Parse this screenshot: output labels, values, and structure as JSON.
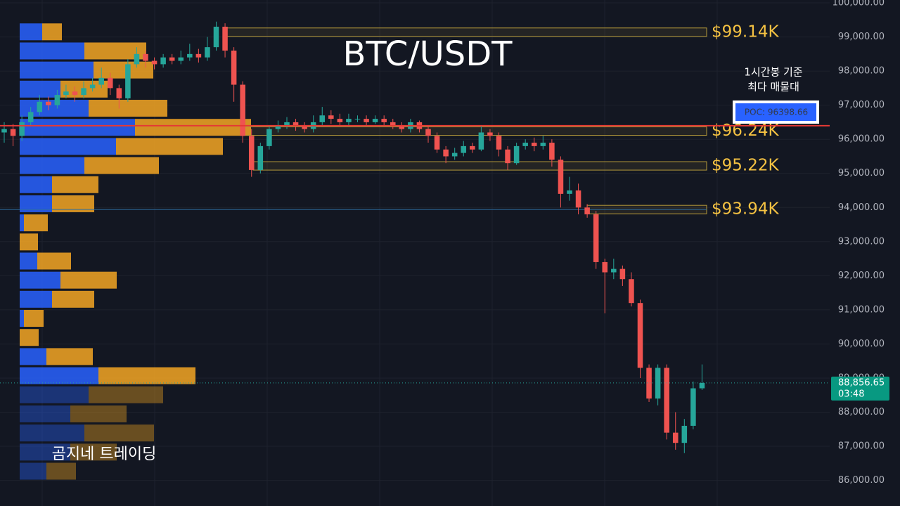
{
  "chart_data": {
    "type": "candlestick",
    "title": "BTC/USDT",
    "ylim": [
      85250,
      100083
    ],
    "yticks": [
      {
        "value": 86000,
        "label": "86,000.00"
      },
      {
        "value": 87000,
        "label": "87,000.00"
      },
      {
        "value": 88000,
        "label": "88,000.00"
      },
      {
        "value": 89000,
        "label": "89,000.00"
      },
      {
        "value": 90000,
        "label": "90,000.00"
      },
      {
        "value": 91000,
        "label": "91,000.00"
      },
      {
        "value": 92000,
        "label": "92,000.00"
      },
      {
        "value": 93000,
        "label": "93,000.00"
      },
      {
        "value": 94000,
        "label": "94,000.00"
      },
      {
        "value": 95000,
        "label": "95,000.00"
      },
      {
        "value": 96000,
        "label": "96,000.00"
      },
      {
        "value": 97000,
        "label": "97,000.00"
      },
      {
        "value": 98000,
        "label": "98,000.00"
      },
      {
        "value": 99000,
        "label": "99,000.00"
      },
      {
        "value": 100000,
        "label": "100,000.00"
      }
    ],
    "grid": true,
    "up_color": "#26a69a",
    "down_color": "#ef5350",
    "open": [
      96200,
      96300,
      96100,
      96500,
      96800,
      97100,
      97000,
      97300,
      97400,
      97300,
      97500,
      97600,
      97800,
      97500,
      97200,
      98200,
      98500,
      98300,
      98200,
      98400,
      98300,
      98400,
      98500,
      98400,
      98700,
      99300,
      98600,
      97600,
      96100,
      95100,
      95800,
      96300,
      96400,
      96500,
      96400,
      96300,
      96500,
      96700,
      96600,
      96500,
      96600,
      96600,
      96500,
      96600,
      96500,
      96400,
      96300,
      96500,
      96300,
      96100,
      95700,
      95500,
      95600,
      95800,
      95700,
      96200,
      96100,
      95700,
      95300,
      95800,
      95900,
      95800,
      95900,
      95400,
      94400,
      94500,
      94000,
      93800,
      92400,
      92100,
      92200,
      91900,
      91200,
      89300,
      88400,
      89300,
      87400,
      87100,
      87600,
      88700
    ],
    "high": [
      96500,
      96450,
      96700,
      96950,
      97300,
      97250,
      97450,
      97600,
      97550,
      97700,
      97800,
      98100,
      97950,
      97600,
      98350,
      98700,
      98600,
      98400,
      98500,
      98500,
      98600,
      98800,
      98650,
      99000,
      99450,
      99400,
      98700,
      97700,
      96300,
      95900,
      96400,
      96550,
      96650,
      96600,
      96500,
      96700,
      96950,
      96850,
      96750,
      96750,
      96700,
      96700,
      96700,
      96700,
      96600,
      96500,
      96600,
      96550,
      96400,
      96200,
      95800,
      95750,
      95950,
      95900,
      96400,
      96300,
      96200,
      95800,
      95900,
      96000,
      96050,
      96100,
      96000,
      95500,
      94900,
      94700,
      94100,
      93900,
      92500,
      92500,
      92300,
      92100,
      91300,
      89400,
      89400,
      89400,
      88000,
      87800,
      88900,
      89400
    ],
    "low": [
      95900,
      95800,
      95950,
      96400,
      96700,
      96850,
      96900,
      97200,
      97100,
      97200,
      97400,
      97500,
      97300,
      96900,
      97100,
      98100,
      98100,
      98050,
      98100,
      98200,
      98200,
      98300,
      98250,
      98300,
      98600,
      98400,
      97100,
      95900,
      94900,
      95000,
      95700,
      96200,
      96300,
      96250,
      96200,
      96200,
      96400,
      96450,
      96400,
      96400,
      96500,
      96400,
      96450,
      96400,
      96300,
      96200,
      96200,
      96200,
      95900,
      95600,
      95300,
      95400,
      95500,
      95600,
      95650,
      95950,
      95500,
      95100,
      95250,
      95700,
      95650,
      95700,
      95200,
      94000,
      94200,
      93800,
      93700,
      92200,
      90900,
      91900,
      91700,
      91100,
      89000,
      88300,
      88200,
      87200,
      86900,
      86800,
      87500,
      88650
    ],
    "close": [
      96300,
      96100,
      96500,
      96800,
      97100,
      97000,
      97300,
      97400,
      97300,
      97500,
      97600,
      97800,
      97500,
      97200,
      98200,
      98500,
      98300,
      98200,
      98400,
      98300,
      98400,
      98500,
      98400,
      98700,
      99300,
      98600,
      97600,
      96100,
      95100,
      95800,
      96300,
      96400,
      96500,
      96400,
      96300,
      96500,
      96700,
      96600,
      96500,
      96600,
      96600,
      96500,
      96600,
      96500,
      96400,
      96300,
      96500,
      96300,
      96100,
      95700,
      95500,
      95600,
      95800,
      95700,
      96200,
      96100,
      95700,
      95300,
      95800,
      95900,
      95800,
      95900,
      95400,
      94400,
      94500,
      94000,
      93800,
      92400,
      92100,
      92200,
      91900,
      91200,
      89300,
      88400,
      89300,
      87400,
      87100,
      87600,
      88700,
      88857
    ],
    "volume_profile": {
      "buy_color": "#2962ff",
      "sell_color": "#f5a623",
      "levels": [
        99150,
        98590,
        98030,
        97470,
        96910,
        96350,
        95790,
        95230,
        94670,
        94110,
        93550,
        92990,
        92430,
        91870,
        91310,
        90750,
        90190,
        89630,
        89070,
        88510,
        87950,
        87390,
        86830,
        86270
      ],
      "buy": [
        32,
        92,
        105,
        58,
        98,
        164,
        137,
        92,
        46,
        46,
        6,
        0,
        25,
        58,
        46,
        6,
        0,
        38,
        112,
        98,
        72,
        92,
        72,
        38
      ],
      "sell": [
        28,
        88,
        85,
        67,
        112,
        165,
        152,
        106,
        66,
        60,
        34,
        26,
        48,
        80,
        60,
        28,
        27,
        66,
        138,
        106,
        80,
        99,
        66,
        42
      ]
    },
    "levels": [
      {
        "value": 99140,
        "label": "$99.14K"
      },
      {
        "value": 96240,
        "label": "$96.24K"
      },
      {
        "value": 95220,
        "label": "$95.22K"
      },
      {
        "value": 93940,
        "label": "$93.94K"
      }
    ],
    "poc": {
      "value": 96398.66,
      "label": "POC: 96398.66"
    },
    "poc_note": [
      "1시간봉 기준",
      "최다 매물대"
    ],
    "last_price": {
      "value": 88856.65,
      "label": "88,856.65",
      "countdown": "03:48"
    },
    "watermark": "곰지네 트레이딩"
  }
}
